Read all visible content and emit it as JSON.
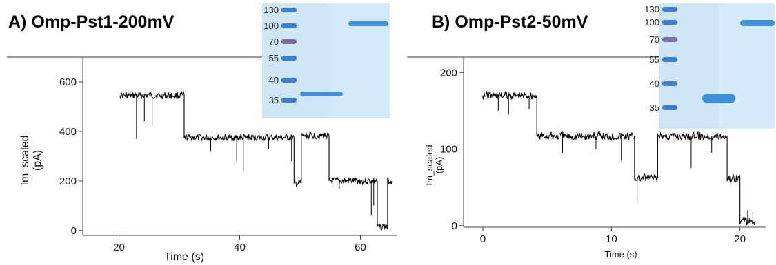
{
  "chart_data": [
    {
      "panel_title": "A) Omp-Pst1-200mV",
      "type": "line",
      "xlabel": "Time (s)",
      "ylabel_line1": "Im_scaled",
      "ylabel_line2": "(pA)",
      "xlim": [
        14,
        66
      ],
      "ylim": [
        -20,
        700
      ],
      "xticks": [
        "20",
        "40",
        "60"
      ],
      "yticks": [
        "0",
        "200",
        "400",
        "600"
      ],
      "trace_color": "#000000",
      "segments": [
        {
          "x": [
            20.2,
            30.8
          ],
          "y": 545
        },
        {
          "x": [
            30.8,
            49.0
          ],
          "y": 375
        },
        {
          "x": [
            49.0,
            50.2
          ],
          "y": 190
        },
        {
          "x": [
            50.2,
            54.8
          ],
          "y": 383
        },
        {
          "x": [
            54.8,
            62.8
          ],
          "y": 200
        },
        {
          "x": [
            62.8,
            64.5
          ],
          "y": 15
        },
        {
          "x": [
            64.5,
            65.2
          ],
          "y": 200
        }
      ],
      "spikes": [
        {
          "x": 22.9,
          "y": 370
        },
        {
          "x": 24.2,
          "y": 440
        },
        {
          "x": 25.5,
          "y": 420
        },
        {
          "x": 35.2,
          "y": 320
        },
        {
          "x": 39.5,
          "y": 280
        },
        {
          "x": 40.6,
          "y": 240
        },
        {
          "x": 44.8,
          "y": 330
        },
        {
          "x": 48.6,
          "y": 280
        },
        {
          "x": 56.5,
          "y": 170
        },
        {
          "x": 61.8,
          "y": 60
        },
        {
          "x": 62.2,
          "y": 100
        }
      ],
      "gel": {
        "mw_labels": [
          "130",
          "100",
          "70",
          "55",
          "40",
          "35"
        ],
        "bands_kda": [
          100,
          36
        ]
      }
    },
    {
      "panel_title": "B) Omp-Pst2-50mV",
      "type": "line",
      "xlabel": "Time (s)",
      "ylabel_line1": "Im_scaled",
      "ylabel_line2": "(pA)",
      "xlim": [
        -1.5,
        22
      ],
      "ylim": [
        -2,
        220
      ],
      "xticks": [
        "0",
        "10",
        "20"
      ],
      "yticks": [
        "0",
        "100",
        "200"
      ],
      "trace_color": "#000000",
      "segments": [
        {
          "x": [
            0.0,
            4.2
          ],
          "y": 170
        },
        {
          "x": [
            4.2,
            11.8
          ],
          "y": 117
        },
        {
          "x": [
            11.8,
            13.6
          ],
          "y": 62
        },
        {
          "x": [
            13.6,
            19.0
          ],
          "y": 117
        },
        {
          "x": [
            19.0,
            20.0
          ],
          "y": 62
        },
        {
          "x": [
            20.0,
            21.2
          ],
          "y": 6
        }
      ],
      "spikes": [
        {
          "x": 1.2,
          "y": 150
        },
        {
          "x": 2.0,
          "y": 145
        },
        {
          "x": 3.6,
          "y": 152
        },
        {
          "x": 6.2,
          "y": 95
        },
        {
          "x": 8.8,
          "y": 100
        },
        {
          "x": 10.8,
          "y": 85
        },
        {
          "x": 12.0,
          "y": 30
        },
        {
          "x": 16.2,
          "y": 75
        },
        {
          "x": 17.8,
          "y": 95
        },
        {
          "x": 20.6,
          "y": 20
        },
        {
          "x": 21.0,
          "y": 18
        }
      ],
      "gel": {
        "mw_labels": [
          "130",
          "100",
          "70",
          "55",
          "40",
          "35"
        ],
        "bands_kda": [
          100,
          36
        ]
      }
    }
  ]
}
